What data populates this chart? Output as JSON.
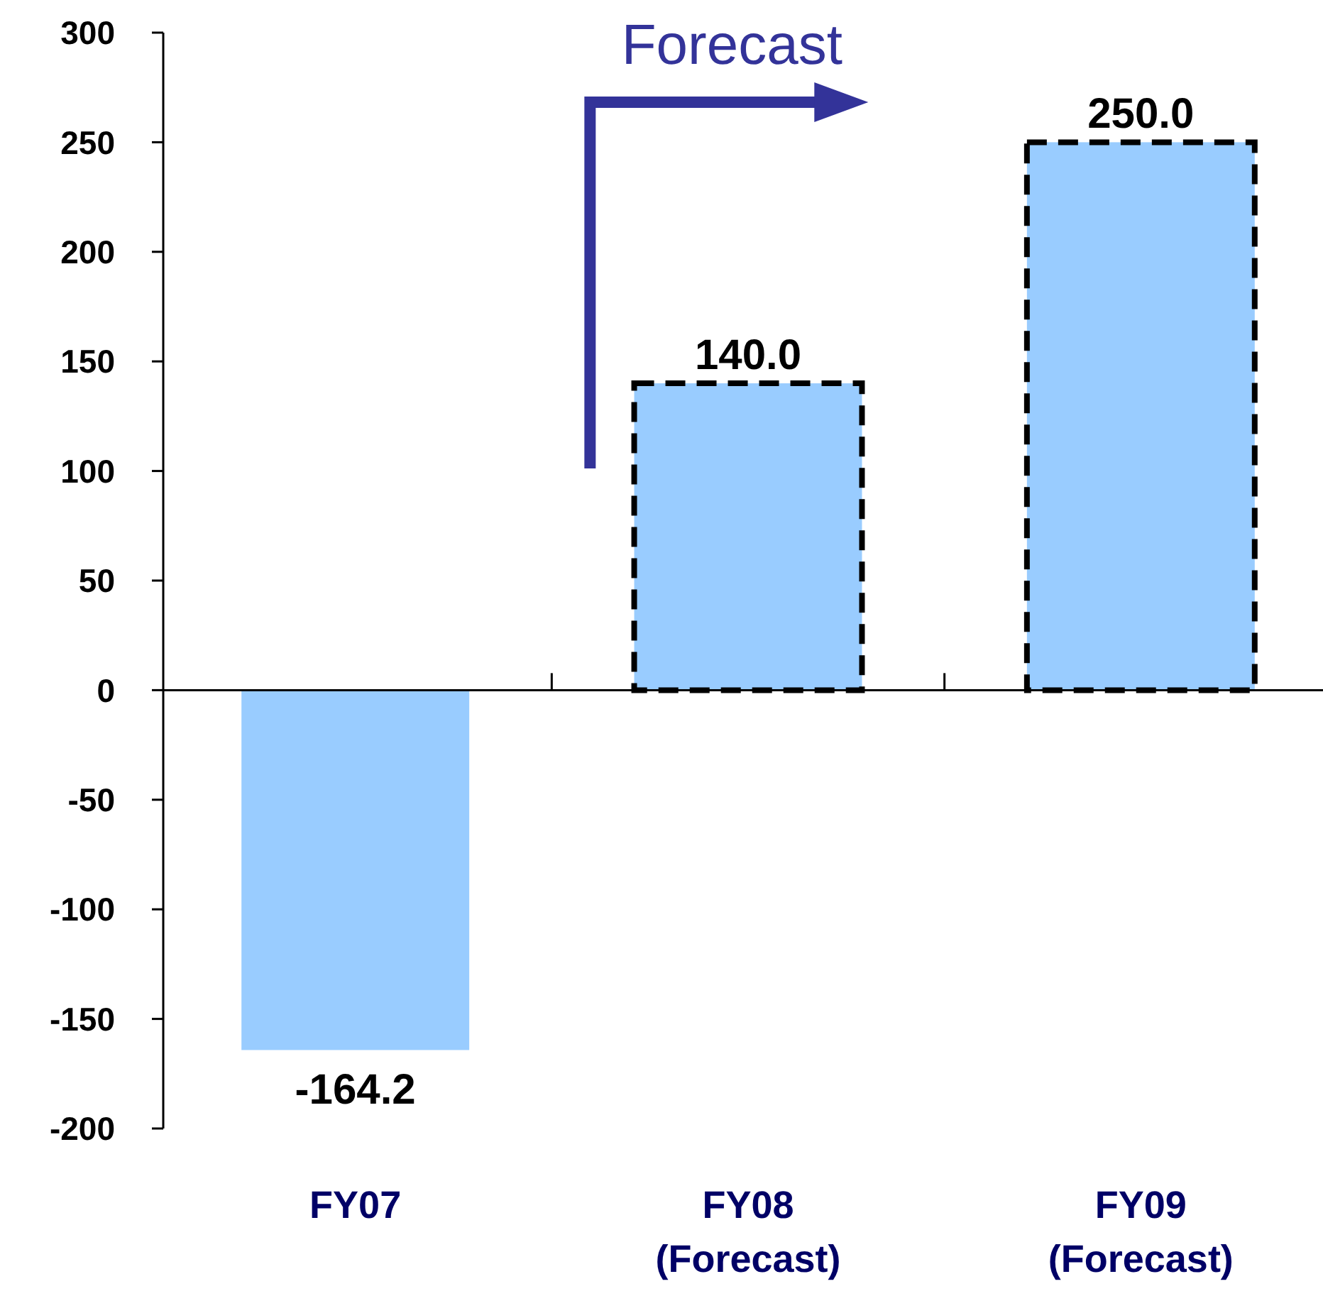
{
  "chart_data": {
    "type": "bar",
    "categories": [
      "FY07",
      "FY08\n(Forecast)",
      "FY09\n(Forecast)"
    ],
    "series": [
      {
        "color": "#99ccff",
        "values": [
          -164.2,
          null,
          null
        ],
        "line_style": "solid"
      },
      {
        "color": "#99ccff",
        "values": [
          null,
          140.0,
          250.0
        ],
        "line_style": "dashed"
      }
    ],
    "value_labels": [
      "-164.2",
      "140.0",
      "250.0"
    ],
    "ylim": [
      -200,
      300
    ],
    "yticks": [
      -200,
      -150,
      -100,
      -50,
      0,
      50,
      100,
      150,
      200,
      250,
      300
    ],
    "annotations": [
      "Forecast"
    ]
  }
}
